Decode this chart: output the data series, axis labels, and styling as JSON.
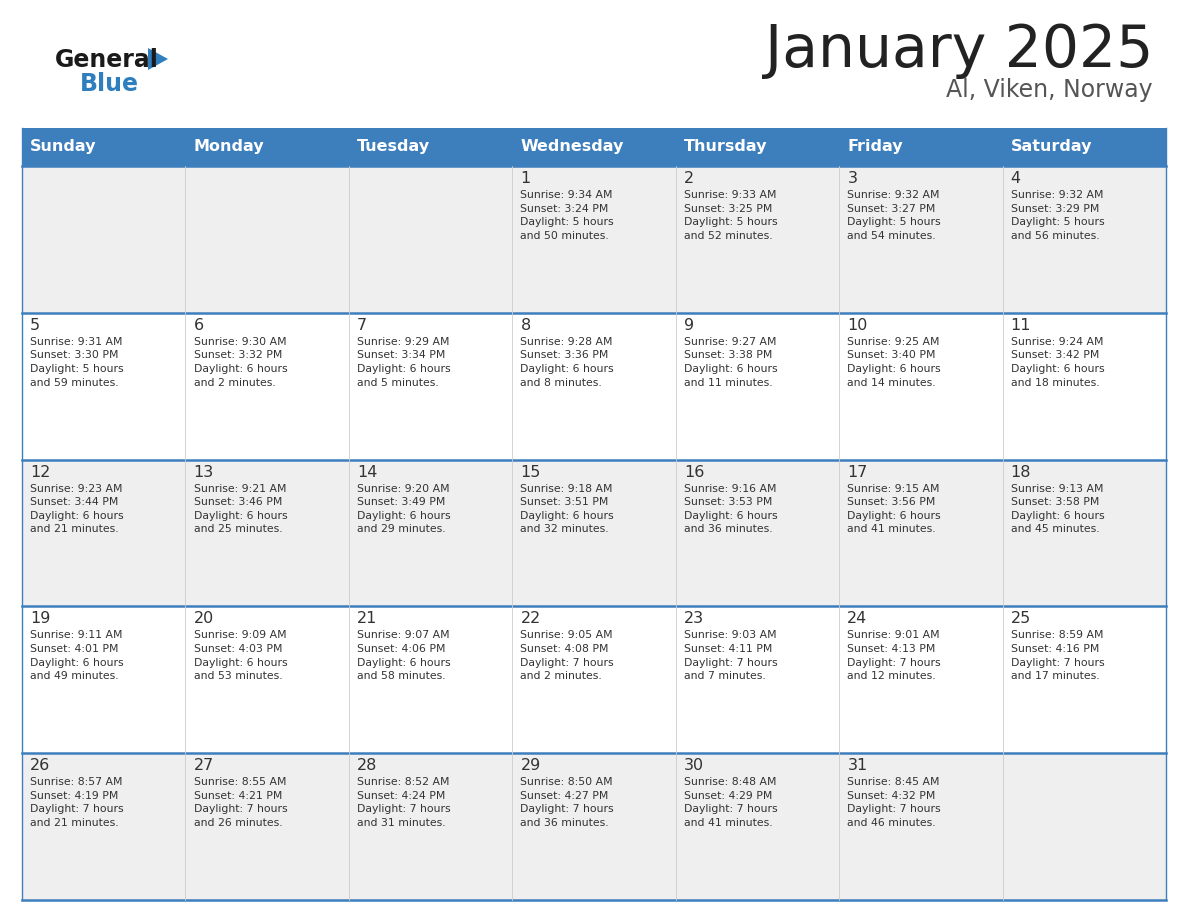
{
  "title": "January 2025",
  "subtitle": "Al, Viken, Norway",
  "days_of_week": [
    "Sunday",
    "Monday",
    "Tuesday",
    "Wednesday",
    "Thursday",
    "Friday",
    "Saturday"
  ],
  "header_bg": "#3D7EBD",
  "header_text": "#FFFFFF",
  "row_bg_odd": "#EFEFEF",
  "row_bg_even": "#FFFFFF",
  "cell_text": "#333333",
  "day_num_color": "#333333",
  "border_color": "#3D7EBD",
  "logo_black": "#1a1a1a",
  "logo_blue": "#2F7FBF",
  "title_color": "#222222",
  "subtitle_color": "#555555",
  "calendar_data": [
    [
      {
        "day": "",
        "info": ""
      },
      {
        "day": "",
        "info": ""
      },
      {
        "day": "",
        "info": ""
      },
      {
        "day": "1",
        "info": "Sunrise: 9:34 AM\nSunset: 3:24 PM\nDaylight: 5 hours\nand 50 minutes."
      },
      {
        "day": "2",
        "info": "Sunrise: 9:33 AM\nSunset: 3:25 PM\nDaylight: 5 hours\nand 52 minutes."
      },
      {
        "day": "3",
        "info": "Sunrise: 9:32 AM\nSunset: 3:27 PM\nDaylight: 5 hours\nand 54 minutes."
      },
      {
        "day": "4",
        "info": "Sunrise: 9:32 AM\nSunset: 3:29 PM\nDaylight: 5 hours\nand 56 minutes."
      }
    ],
    [
      {
        "day": "5",
        "info": "Sunrise: 9:31 AM\nSunset: 3:30 PM\nDaylight: 5 hours\nand 59 minutes."
      },
      {
        "day": "6",
        "info": "Sunrise: 9:30 AM\nSunset: 3:32 PM\nDaylight: 6 hours\nand 2 minutes."
      },
      {
        "day": "7",
        "info": "Sunrise: 9:29 AM\nSunset: 3:34 PM\nDaylight: 6 hours\nand 5 minutes."
      },
      {
        "day": "8",
        "info": "Sunrise: 9:28 AM\nSunset: 3:36 PM\nDaylight: 6 hours\nand 8 minutes."
      },
      {
        "day": "9",
        "info": "Sunrise: 9:27 AM\nSunset: 3:38 PM\nDaylight: 6 hours\nand 11 minutes."
      },
      {
        "day": "10",
        "info": "Sunrise: 9:25 AM\nSunset: 3:40 PM\nDaylight: 6 hours\nand 14 minutes."
      },
      {
        "day": "11",
        "info": "Sunrise: 9:24 AM\nSunset: 3:42 PM\nDaylight: 6 hours\nand 18 minutes."
      }
    ],
    [
      {
        "day": "12",
        "info": "Sunrise: 9:23 AM\nSunset: 3:44 PM\nDaylight: 6 hours\nand 21 minutes."
      },
      {
        "day": "13",
        "info": "Sunrise: 9:21 AM\nSunset: 3:46 PM\nDaylight: 6 hours\nand 25 minutes."
      },
      {
        "day": "14",
        "info": "Sunrise: 9:20 AM\nSunset: 3:49 PM\nDaylight: 6 hours\nand 29 minutes."
      },
      {
        "day": "15",
        "info": "Sunrise: 9:18 AM\nSunset: 3:51 PM\nDaylight: 6 hours\nand 32 minutes."
      },
      {
        "day": "16",
        "info": "Sunrise: 9:16 AM\nSunset: 3:53 PM\nDaylight: 6 hours\nand 36 minutes."
      },
      {
        "day": "17",
        "info": "Sunrise: 9:15 AM\nSunset: 3:56 PM\nDaylight: 6 hours\nand 41 minutes."
      },
      {
        "day": "18",
        "info": "Sunrise: 9:13 AM\nSunset: 3:58 PM\nDaylight: 6 hours\nand 45 minutes."
      }
    ],
    [
      {
        "day": "19",
        "info": "Sunrise: 9:11 AM\nSunset: 4:01 PM\nDaylight: 6 hours\nand 49 minutes."
      },
      {
        "day": "20",
        "info": "Sunrise: 9:09 AM\nSunset: 4:03 PM\nDaylight: 6 hours\nand 53 minutes."
      },
      {
        "day": "21",
        "info": "Sunrise: 9:07 AM\nSunset: 4:06 PM\nDaylight: 6 hours\nand 58 minutes."
      },
      {
        "day": "22",
        "info": "Sunrise: 9:05 AM\nSunset: 4:08 PM\nDaylight: 7 hours\nand 2 minutes."
      },
      {
        "day": "23",
        "info": "Sunrise: 9:03 AM\nSunset: 4:11 PM\nDaylight: 7 hours\nand 7 minutes."
      },
      {
        "day": "24",
        "info": "Sunrise: 9:01 AM\nSunset: 4:13 PM\nDaylight: 7 hours\nand 12 minutes."
      },
      {
        "day": "25",
        "info": "Sunrise: 8:59 AM\nSunset: 4:16 PM\nDaylight: 7 hours\nand 17 minutes."
      }
    ],
    [
      {
        "day": "26",
        "info": "Sunrise: 8:57 AM\nSunset: 4:19 PM\nDaylight: 7 hours\nand 21 minutes."
      },
      {
        "day": "27",
        "info": "Sunrise: 8:55 AM\nSunset: 4:21 PM\nDaylight: 7 hours\nand 26 minutes."
      },
      {
        "day": "28",
        "info": "Sunrise: 8:52 AM\nSunset: 4:24 PM\nDaylight: 7 hours\nand 31 minutes."
      },
      {
        "day": "29",
        "info": "Sunrise: 8:50 AM\nSunset: 4:27 PM\nDaylight: 7 hours\nand 36 minutes."
      },
      {
        "day": "30",
        "info": "Sunrise: 8:48 AM\nSunset: 4:29 PM\nDaylight: 7 hours\nand 41 minutes."
      },
      {
        "day": "31",
        "info": "Sunrise: 8:45 AM\nSunset: 4:32 PM\nDaylight: 7 hours\nand 46 minutes."
      },
      {
        "day": "",
        "info": ""
      }
    ]
  ]
}
